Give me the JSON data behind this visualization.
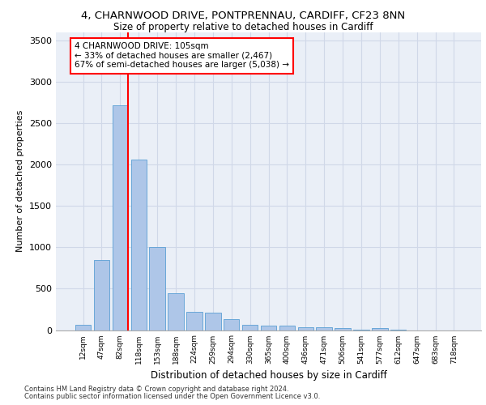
{
  "title_line1": "4, CHARNWOOD DRIVE, PONTPRENNAU, CARDIFF, CF23 8NN",
  "title_line2": "Size of property relative to detached houses in Cardiff",
  "xlabel": "Distribution of detached houses by size in Cardiff",
  "ylabel": "Number of detached properties",
  "bar_labels": [
    "12sqm",
    "47sqm",
    "82sqm",
    "118sqm",
    "153sqm",
    "188sqm",
    "224sqm",
    "259sqm",
    "294sqm",
    "330sqm",
    "365sqm",
    "400sqm",
    "436sqm",
    "471sqm",
    "506sqm",
    "541sqm",
    "577sqm",
    "612sqm",
    "647sqm",
    "683sqm",
    "718sqm"
  ],
  "bar_values": [
    60,
    850,
    2720,
    2060,
    1000,
    450,
    220,
    215,
    130,
    65,
    50,
    50,
    30,
    30,
    25,
    5,
    20,
    5,
    0,
    0,
    0
  ],
  "bar_color": "#aec6e8",
  "bar_edge_color": "#5a9fd4",
  "grid_color": "#d0d8e8",
  "bg_color": "#eaeff7",
  "vline_color": "red",
  "vline_position": 2.43,
  "annotation_text": "4 CHARNWOOD DRIVE: 105sqm\n← 33% of detached houses are smaller (2,467)\n67% of semi-detached houses are larger (5,038) →",
  "annotation_box_facecolor": "white",
  "annotation_box_edgecolor": "red",
  "ylim": [
    0,
    3600
  ],
  "yticks": [
    0,
    500,
    1000,
    1500,
    2000,
    2500,
    3000,
    3500
  ],
  "footer_line1": "Contains HM Land Registry data © Crown copyright and database right 2024.",
  "footer_line2": "Contains public sector information licensed under the Open Government Licence v3.0."
}
